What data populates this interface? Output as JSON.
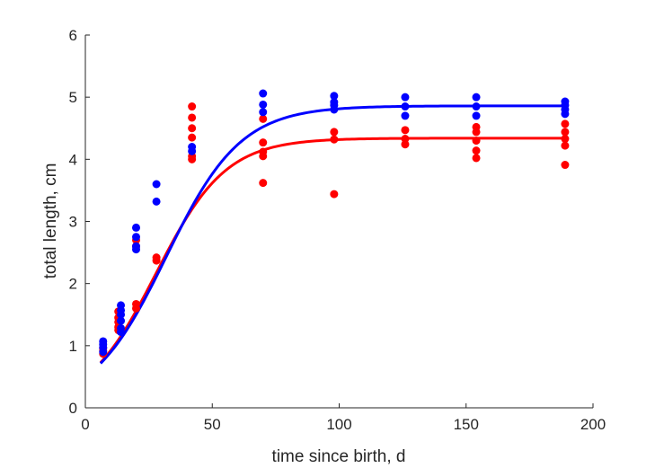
{
  "chart_data": {
    "type": "scatter",
    "xlabel": "time since birth, d",
    "ylabel": "total length, cm",
    "xlim": [
      0,
      200
    ],
    "ylim": [
      0,
      6
    ],
    "xticks": [
      "0",
      "50",
      "100",
      "150",
      "200"
    ],
    "yticks": [
      "0",
      "1",
      "2",
      "3",
      "4",
      "5",
      "6"
    ],
    "grid": false,
    "series": [
      {
        "color": "#ff0000",
        "points": [
          [
            7,
            0.87
          ],
          [
            7,
            0.92
          ],
          [
            7,
            0.96
          ],
          [
            13,
            1.25
          ],
          [
            13,
            1.3
          ],
          [
            13,
            1.38
          ],
          [
            13,
            1.45
          ],
          [
            13,
            1.55
          ],
          [
            20,
            1.6
          ],
          [
            20,
            1.67
          ],
          [
            20,
            2.6
          ],
          [
            20,
            2.7
          ],
          [
            28,
            2.37
          ],
          [
            28,
            2.42
          ],
          [
            42,
            4.0
          ],
          [
            42,
            4.05
          ],
          [
            42,
            4.35
          ],
          [
            42,
            4.5
          ],
          [
            42,
            4.67
          ],
          [
            42,
            4.85
          ],
          [
            70,
            3.62
          ],
          [
            70,
            4.05
          ],
          [
            70,
            4.12
          ],
          [
            70,
            4.27
          ],
          [
            70,
            4.65
          ],
          [
            98,
            3.44
          ],
          [
            98,
            4.32
          ],
          [
            98,
            4.44
          ],
          [
            126,
            4.24
          ],
          [
            126,
            4.33
          ],
          [
            126,
            4.47
          ],
          [
            154,
            4.02
          ],
          [
            154,
            4.14
          ],
          [
            154,
            4.3
          ],
          [
            154,
            4.44
          ],
          [
            154,
            4.52
          ],
          [
            189,
            3.91
          ],
          [
            189,
            4.22
          ],
          [
            189,
            4.33
          ],
          [
            189,
            4.44
          ],
          [
            189,
            4.57
          ]
        ],
        "curve": {
          "Linf": 4.34,
          "L0": 0.5,
          "k": 0.073
        }
      },
      {
        "color": "#0000ff",
        "points": [
          [
            7,
            0.9
          ],
          [
            7,
            0.97
          ],
          [
            7,
            1.02
          ],
          [
            7,
            1.07
          ],
          [
            14,
            1.22
          ],
          [
            14,
            1.28
          ],
          [
            14,
            1.4
          ],
          [
            14,
            1.5
          ],
          [
            14,
            1.57
          ],
          [
            14,
            1.65
          ],
          [
            20,
            2.55
          ],
          [
            20,
            2.6
          ],
          [
            20,
            2.75
          ],
          [
            20,
            2.9
          ],
          [
            28,
            3.32
          ],
          [
            28,
            3.6
          ],
          [
            42,
            4.13
          ],
          [
            42,
            4.2
          ],
          [
            70,
            4.76
          ],
          [
            70,
            4.88
          ],
          [
            70,
            5.06
          ],
          [
            98,
            4.8
          ],
          [
            98,
            4.87
          ],
          [
            98,
            4.92
          ],
          [
            98,
            5.02
          ],
          [
            126,
            4.7
          ],
          [
            126,
            4.85
          ],
          [
            126,
            5.0
          ],
          [
            154,
            4.7
          ],
          [
            154,
            4.85
          ],
          [
            154,
            5.0
          ],
          [
            189,
            4.73
          ],
          [
            189,
            4.8
          ],
          [
            189,
            4.87
          ],
          [
            189,
            4.93
          ]
        ],
        "curve": {
          "Linf": 4.86,
          "L0": 0.5,
          "k": 0.068
        }
      }
    ]
  }
}
